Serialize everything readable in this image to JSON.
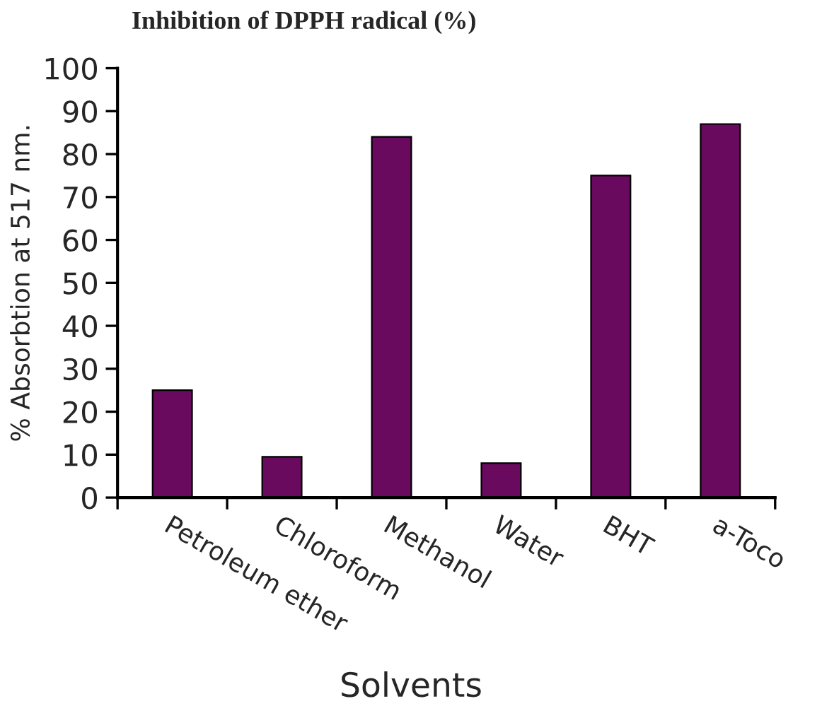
{
  "chart_data": {
    "type": "bar",
    "title": "Inhibition of DPPH radical (%)",
    "xlabel": "Solvents",
    "ylabel": "% Absorbtion at 517 nm.",
    "categories": [
      "Petroleum ether",
      "Chloroform",
      "Methanol",
      "Water",
      "BHT",
      "a-Toco"
    ],
    "values": [
      25,
      9.5,
      84,
      8,
      75,
      87
    ],
    "color": "#6a0a5e",
    "ylim": [
      0,
      100
    ],
    "yticks": [
      0,
      10,
      20,
      30,
      40,
      50,
      60,
      70,
      80,
      90,
      100
    ],
    "grid": false,
    "legend": false
  }
}
